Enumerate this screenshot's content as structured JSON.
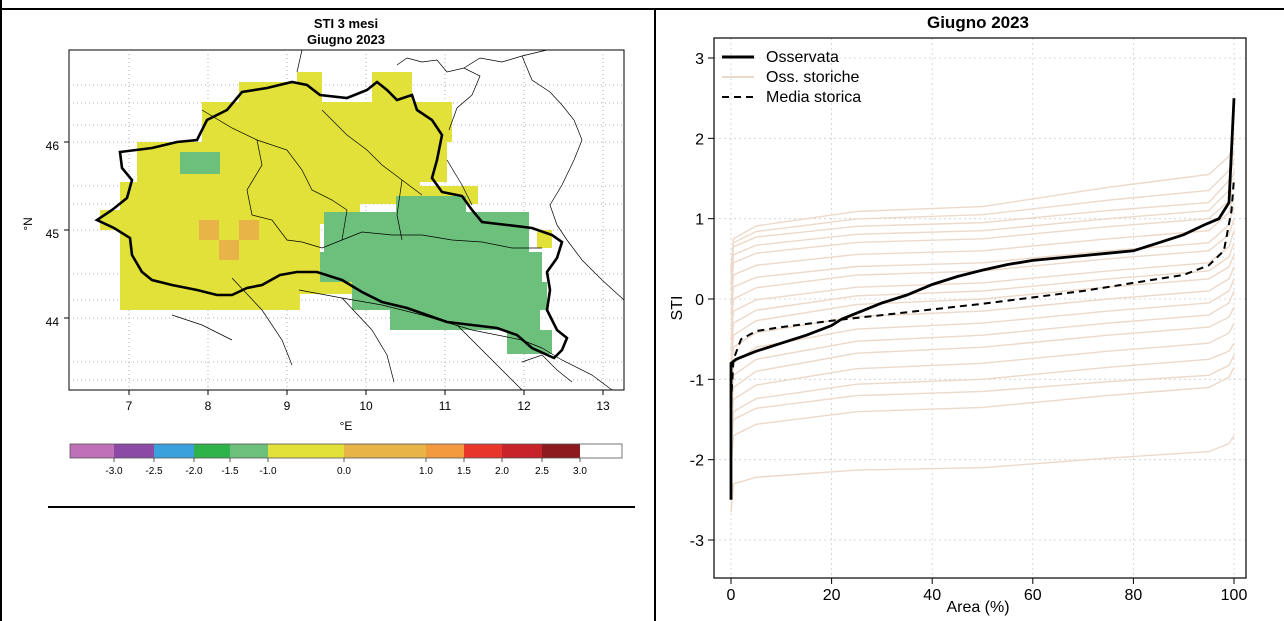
{
  "map_panel": {
    "title_line1": "STI 3 mesi",
    "title_line2": "Giugno 2023",
    "xlabel": "°E",
    "ylabel": "°N",
    "lon_ticks": [
      "7",
      "8",
      "9",
      "10",
      "11",
      "12",
      "13"
    ],
    "lat_ticks": [
      "44",
      "45",
      "46"
    ],
    "colorbar_labels": [
      "-3.0",
      "-2.5",
      "-2.0",
      "-1.5",
      "-1.0",
      "0.0",
      "1.0",
      "1.5",
      "2.0",
      "2.5",
      "3.0"
    ],
    "colorbar_colors": [
      "#c070b8",
      "#8a4aa6",
      "#3aa1dc",
      "#2db34a",
      "#6dc07c",
      "#e2e139",
      "#e8b448",
      "#f39a3e",
      "#e9362b",
      "#c8222a",
      "#8c1a1e"
    ],
    "colors": {
      "near_normal": "#e2e139",
      "mild_dry": "#6dc07c",
      "mild_wet": "#e8b448"
    }
  },
  "chart_data": {
    "type": "line",
    "title": "Giugno 2023",
    "xlabel": "Area (%)",
    "ylabel": "STI",
    "xlim": [
      0,
      100
    ],
    "ylim": [
      -3.2,
      3.2
    ],
    "x_ticks": [
      0,
      20,
      40,
      60,
      80,
      100
    ],
    "y_ticks": [
      -3,
      -2,
      -1,
      0,
      1,
      2,
      3
    ],
    "grid": true,
    "legend_position": "top-left",
    "series": [
      {
        "name": "Osservata",
        "color": "#000000",
        "style": "solid",
        "points": [
          [
            0,
            -2.5
          ],
          [
            0,
            -0.8
          ],
          [
            1,
            -0.75
          ],
          [
            5,
            -0.65
          ],
          [
            10,
            -0.55
          ],
          [
            15,
            -0.45
          ],
          [
            20,
            -0.33
          ],
          [
            22,
            -0.25
          ],
          [
            26,
            -0.15
          ],
          [
            30,
            -0.05
          ],
          [
            35,
            0.05
          ],
          [
            40,
            0.18
          ],
          [
            45,
            0.28
          ],
          [
            50,
            0.36
          ],
          [
            55,
            0.43
          ],
          [
            60,
            0.48
          ],
          [
            65,
            0.51
          ],
          [
            70,
            0.54
          ],
          [
            75,
            0.57
          ],
          [
            80,
            0.6
          ],
          [
            85,
            0.7
          ],
          [
            90,
            0.8
          ],
          [
            94,
            0.92
          ],
          [
            97,
            1.0
          ],
          [
            99,
            1.2
          ],
          [
            100,
            2.5
          ]
        ]
      },
      {
        "name": "Oss. storiche",
        "color": "#ecd9c9",
        "style": "solid"
      },
      {
        "name": "Media storica",
        "color": "#000000",
        "style": "dashed",
        "points": [
          [
            0,
            -1.3
          ],
          [
            0.5,
            -0.75
          ],
          [
            2,
            -0.5
          ],
          [
            5,
            -0.4
          ],
          [
            10,
            -0.35
          ],
          [
            20,
            -0.27
          ],
          [
            30,
            -0.2
          ],
          [
            40,
            -0.13
          ],
          [
            50,
            -0.06
          ],
          [
            60,
            0.02
          ],
          [
            70,
            0.1
          ],
          [
            80,
            0.2
          ],
          [
            90,
            0.3
          ],
          [
            95,
            0.42
          ],
          [
            98,
            0.6
          ],
          [
            99.5,
            1.1
          ],
          [
            100,
            1.5
          ]
        ]
      }
    ],
    "historical_curves": [
      {
        "low": -2.3,
        "mid": -2.1,
        "high": -1.9,
        "end": -1.7
      },
      {
        "low": -1.7,
        "mid": -1.35,
        "high": -1.1,
        "end": -0.85
      },
      {
        "low": -1.5,
        "mid": -1.15,
        "high": -0.95,
        "end": -0.7
      },
      {
        "low": -1.4,
        "mid": -1.0,
        "high": -0.75,
        "end": -0.55
      },
      {
        "low": -1.25,
        "mid": -0.8,
        "high": -0.55,
        "end": -0.3
      },
      {
        "low": -1.1,
        "mid": -0.6,
        "high": -0.35,
        "end": -0.1
      },
      {
        "low": -0.95,
        "mid": -0.45,
        "high": -0.2,
        "end": 0.1
      },
      {
        "low": -0.8,
        "mid": -0.3,
        "high": -0.05,
        "end": 0.25
      },
      {
        "low": -0.6,
        "mid": -0.15,
        "high": 0.1,
        "end": 0.4
      },
      {
        "low": -0.45,
        "mid": 0.0,
        "high": 0.25,
        "end": 0.55
      },
      {
        "low": -0.3,
        "mid": 0.1,
        "high": 0.35,
        "end": 0.7
      },
      {
        "low": -0.15,
        "mid": 0.2,
        "high": 0.45,
        "end": 0.85
      },
      {
        "low": 0.0,
        "mid": 0.35,
        "high": 0.6,
        "end": 1.0
      },
      {
        "low": 0.15,
        "mid": 0.45,
        "high": 0.7,
        "end": 1.15
      },
      {
        "low": 0.3,
        "mid": 0.6,
        "high": 0.85,
        "end": 1.3
      },
      {
        "low": 0.45,
        "mid": 0.75,
        "high": 1.0,
        "end": 1.45
      },
      {
        "low": 0.55,
        "mid": 0.85,
        "high": 1.1,
        "end": 1.6
      },
      {
        "low": 0.65,
        "mid": 0.95,
        "high": 1.2,
        "end": 1.75
      },
      {
        "low": 0.7,
        "mid": 1.05,
        "high": 1.35,
        "end": 1.85
      },
      {
        "low": 0.75,
        "mid": 1.15,
        "high": 1.55,
        "end": 2.0
      }
    ]
  }
}
